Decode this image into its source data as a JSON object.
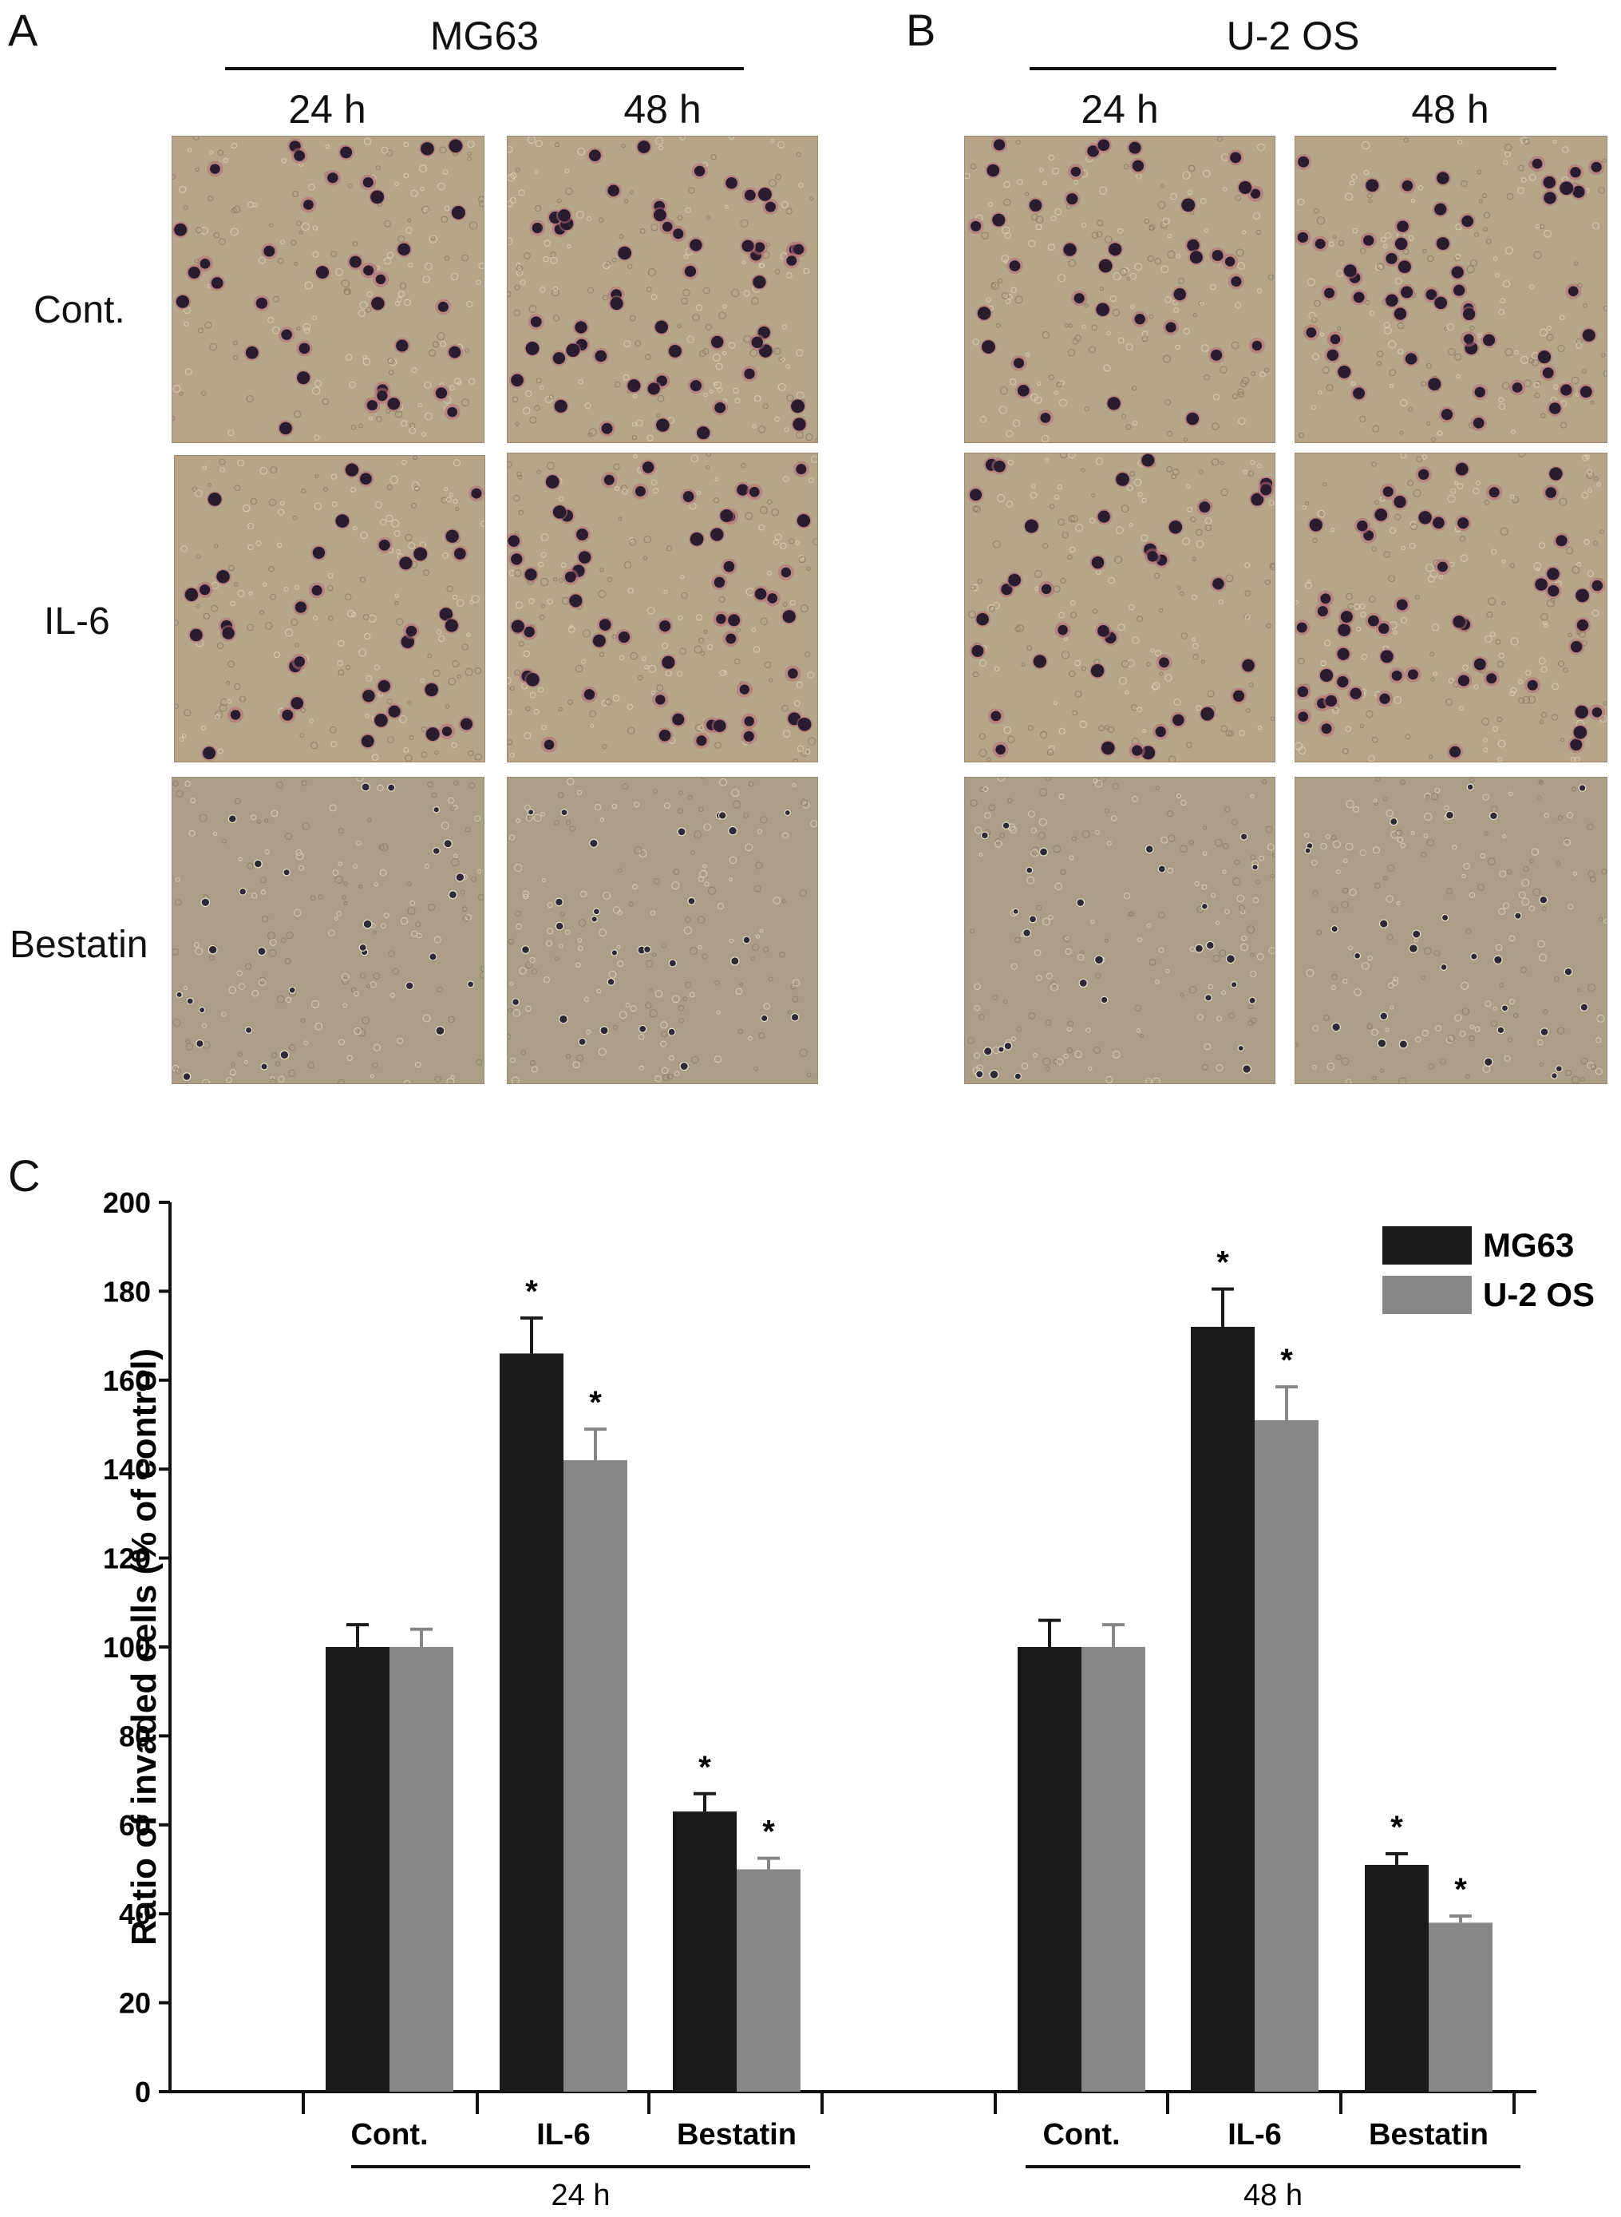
{
  "panels": {
    "a_label": "A",
    "b_label": "B",
    "c_label": "C",
    "a_group": "MG63",
    "b_group": "U-2 OS",
    "time_24": "24 h",
    "time_48": "48 h",
    "rows": [
      "Cont.",
      "IL-6",
      "Bestatin"
    ]
  },
  "micrographs": [
    {
      "panel": "A",
      "time": "24 h",
      "row": "Cont.",
      "stain": "dark"
    },
    {
      "panel": "A",
      "time": "48 h",
      "row": "Cont.",
      "stain": "dark"
    },
    {
      "panel": "A",
      "time": "24 h",
      "row": "IL-6",
      "stain": "dark"
    },
    {
      "panel": "A",
      "time": "48 h",
      "row": "IL-6",
      "stain": "dark"
    },
    {
      "panel": "A",
      "time": "24 h",
      "row": "Bestatin",
      "stain": "light"
    },
    {
      "panel": "A",
      "time": "48 h",
      "row": "Bestatin",
      "stain": "light"
    },
    {
      "panel": "B",
      "time": "24 h",
      "row": "Cont.",
      "stain": "dark"
    },
    {
      "panel": "B",
      "time": "48 h",
      "row": "Cont.",
      "stain": "dark"
    },
    {
      "panel": "B",
      "time": "24 h",
      "row": "IL-6",
      "stain": "dark"
    },
    {
      "panel": "B",
      "time": "48 h",
      "row": "IL-6",
      "stain": "dark"
    },
    {
      "panel": "B",
      "time": "24 h",
      "row": "Bestatin",
      "stain": "light"
    },
    {
      "panel": "B",
      "time": "48 h",
      "row": "Bestatin",
      "stain": "light"
    }
  ],
  "chart_data": {
    "type": "bar",
    "ylabel": "Ratio of invaded cells (% of control)",
    "ylim": [
      0,
      200
    ],
    "yticks": [
      0,
      20,
      40,
      60,
      80,
      100,
      120,
      140,
      160,
      180,
      200
    ],
    "groups": [
      {
        "label": "24 h",
        "categories": [
          "Cont.",
          "IL-6",
          "Bestatin"
        ]
      },
      {
        "label": "48 h",
        "categories": [
          "Cont.",
          "IL-6",
          "Bestatin"
        ]
      }
    ],
    "series": [
      {
        "name": "MG63",
        "color": "#1a1a1a",
        "values": [
          100,
          166,
          63,
          100,
          172,
          51
        ],
        "errors": [
          5,
          8,
          4,
          6,
          8.5,
          2.5
        ],
        "significant": [
          false,
          true,
          true,
          false,
          true,
          true
        ]
      },
      {
        "name": "U-2 OS",
        "color": "#858789",
        "values": [
          100,
          142,
          50,
          100,
          151,
          38
        ],
        "errors": [
          4,
          7,
          2.5,
          5,
          7.5,
          1.5
        ],
        "significant": [
          false,
          true,
          true,
          false,
          true,
          true
        ]
      }
    ],
    "significance_marker": "*",
    "legend_position": "top-right"
  }
}
